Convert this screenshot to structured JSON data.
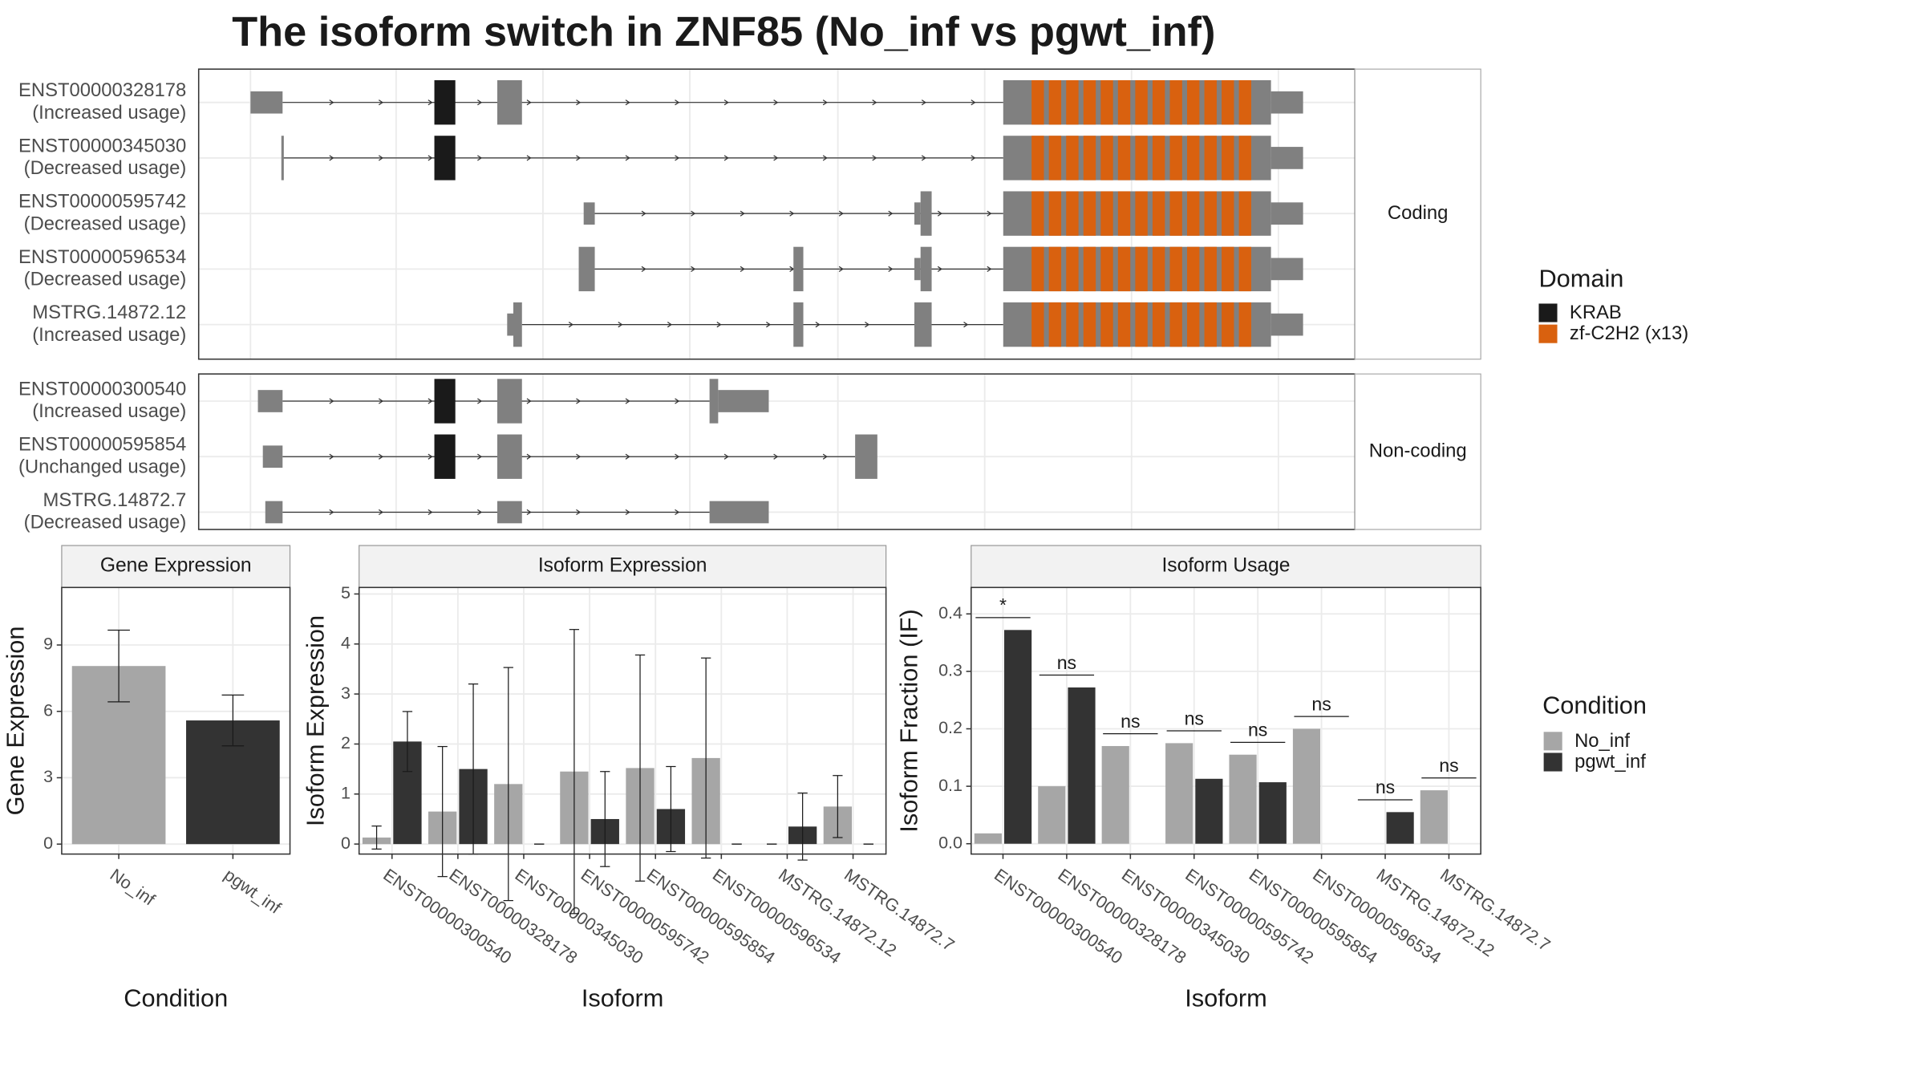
{
  "title": "The isoform switch in ZNF85 (No_inf vs pgwt_inf)",
  "structure": {
    "facets": [
      {
        "label": "Coding",
        "isoforms": [
          {
            "id": "ENST00000328178",
            "usage": "(Increased usage)"
          },
          {
            "id": "ENST00000345030",
            "usage": "(Decreased usage)"
          },
          {
            "id": "ENST00000595742",
            "usage": "(Decreased usage)"
          },
          {
            "id": "ENST00000596534",
            "usage": "(Decreased usage)"
          },
          {
            "id": "MSTRG.14872.12",
            "usage": "(Increased usage)"
          }
        ]
      },
      {
        "label": "Non-coding",
        "isoforms": [
          {
            "id": "ENST00000300540",
            "usage": "(Increased usage)"
          },
          {
            "id": "ENST00000595854",
            "usage": "(Unchanged usage)"
          },
          {
            "id": "MSTRG.14872.7",
            "usage": "(Decreased usage)"
          }
        ]
      }
    ],
    "legend": {
      "title": "Domain",
      "items": [
        {
          "name": "KRAB",
          "color": "#1a1a1a"
        },
        {
          "name": "zf-C2H2 (x13)",
          "color": "#d9610f"
        }
      ]
    }
  },
  "chart_data": [
    {
      "type": "bar",
      "title": "Gene Expression",
      "x_label": "Condition",
      "y_label": "Gene Expression",
      "categories": [
        "No_inf",
        "pgwt_inf"
      ],
      "values": [
        8.05,
        5.59
      ],
      "errors": [
        1.62,
        1.15
      ],
      "colors": [
        "#a6a6a6",
        "#333333"
      ],
      "ylim": [
        -0.45,
        11.6
      ],
      "yticks": [
        0,
        3,
        6,
        9
      ],
      "grid": true
    },
    {
      "type": "bar",
      "title": "Isoform Expression",
      "x_label": "Isoform",
      "y_label": "Isoform Expression",
      "categories": [
        "ENST00000300540",
        "ENST00000328178",
        "ENST00000345030",
        "ENST00000595742",
        "ENST00000595854",
        "ENST00000596534",
        "MSTRG.14872.12",
        "MSTRG.14872.7"
      ],
      "series": [
        {
          "name": "No_inf",
          "color": "#a6a6a6",
          "values": [
            0.13,
            0.65,
            1.2,
            1.45,
            1.52,
            1.72,
            0,
            0.75
          ],
          "errors": [
            0.23,
            1.3,
            2.33,
            2.84,
            2.26,
            2.0,
            0,
            0.62
          ]
        },
        {
          "name": "pgwt_inf",
          "color": "#333333",
          "values": [
            2.05,
            1.5,
            0,
            0.5,
            0.7,
            0,
            0.35,
            0
          ],
          "errors": [
            0.6,
            1.7,
            0,
            0.95,
            0.85,
            0,
            0.67,
            0
          ]
        }
      ],
      "ylim": [
        -0.2,
        5.13
      ],
      "yticks": [
        0,
        1,
        2,
        3,
        4,
        5
      ],
      "grid": true
    },
    {
      "type": "bar",
      "title": "Isoform Usage",
      "x_label": "Isoform",
      "y_label": "Isoform Fraction (IF)",
      "categories": [
        "ENST00000300540",
        "ENST00000328178",
        "ENST00000345030",
        "ENST00000595742",
        "ENST00000595854",
        "ENST00000596534",
        "MSTRG.14872.12",
        "MSTRG.14872.7"
      ],
      "series": [
        {
          "name": "No_inf",
          "color": "#a6a6a6",
          "values": [
            0.018,
            0.1,
            0.17,
            0.175,
            0.155,
            0.2,
            0,
            0.093
          ]
        },
        {
          "name": "pgwt_inf",
          "color": "#333333",
          "values": [
            0.372,
            0.272,
            0,
            0.113,
            0.107,
            0,
            0.055,
            0
          ]
        }
      ],
      "annotations": [
        "*",
        "ns",
        "ns",
        "ns",
        "ns",
        "ns",
        "ns",
        "ns"
      ],
      "ylim": [
        -0.018,
        0.446
      ],
      "yticks": [
        {
          "value": 0,
          "label": "0.0"
        },
        0.1,
        0.2,
        0.3,
        0.4
      ],
      "grid": true,
      "legend_title": "Condition"
    }
  ]
}
